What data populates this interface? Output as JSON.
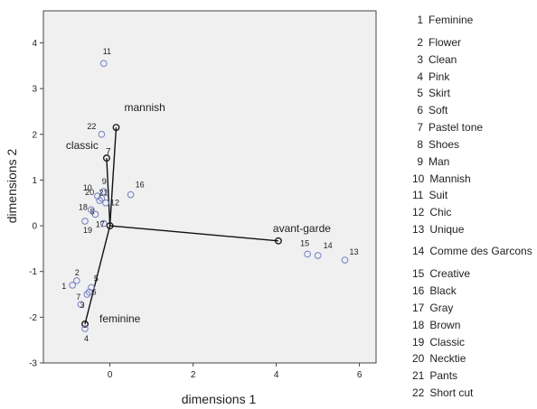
{
  "chart_data": {
    "type": "scatter",
    "xlabel": "dimensions 1",
    "ylabel": "dimensions 2",
    "xlim": [
      -1.6,
      6.4
    ],
    "ylim": [
      -3,
      4.7
    ],
    "x_ticks": [
      0,
      2,
      4,
      6
    ],
    "y_ticks": [
      -3,
      -2,
      -1,
      0,
      1,
      2,
      3,
      4
    ],
    "x_tick_labels": [
      "0",
      "2",
      "4",
      "6"
    ],
    "y_tick_labels": [
      "-3",
      "-2",
      "-1",
      "0",
      "1",
      "2",
      "3",
      "4"
    ],
    "grid": false,
    "colors": {
      "plot_background": "#f0f0f0",
      "point_stroke": "#7b86c8",
      "vector": "#111111",
      "text": "#222222"
    },
    "points": [
      {
        "id": "1",
        "x": -0.9,
        "y": -1.3
      },
      {
        "id": "2",
        "x": -0.8,
        "y": -1.2
      },
      {
        "id": "3",
        "x": -0.7,
        "y": -1.72
      },
      {
        "id": "4",
        "x": -0.6,
        "y": -2.25
      },
      {
        "id": "5",
        "x": -0.45,
        "y": -1.35
      },
      {
        "id": "6",
        "x": -0.5,
        "y": -1.45
      },
      {
        "id": "7",
        "x": -0.55,
        "y": -1.5
      },
      {
        "id": "8",
        "x": -0.35,
        "y": 0.25
      },
      {
        "id": "9",
        "x": -0.15,
        "y": 0.75
      },
      {
        "id": "10",
        "x": -0.3,
        "y": 0.65
      },
      {
        "id": "11",
        "x": -0.15,
        "y": 3.55
      },
      {
        "id": "12",
        "x": -0.1,
        "y": 0.5
      },
      {
        "id": "13",
        "x": 5.65,
        "y": -0.75
      },
      {
        "id": "14",
        "x": 5.0,
        "y": -0.65
      },
      {
        "id": "15",
        "x": 4.75,
        "y": -0.62
      },
      {
        "id": "16",
        "x": 0.5,
        "y": 0.68
      },
      {
        "id": "17",
        "x": -0.15,
        "y": 0.05
      },
      {
        "id": "18",
        "x": -0.45,
        "y": 0.35
      },
      {
        "id": "19",
        "x": -0.6,
        "y": 0.1
      },
      {
        "id": "20",
        "x": -0.25,
        "y": 0.55
      },
      {
        "id": "21",
        "x": -0.2,
        "y": 0.6
      },
      {
        "id": "22",
        "x": -0.2,
        "y": 2.0
      }
    ],
    "vectors": [
      {
        "name": "mannish",
        "x": 0.15,
        "y": 2.15
      },
      {
        "name": "classic",
        "x": -0.08,
        "y": 1.48
      },
      {
        "name": "avant-garde",
        "x": 4.05,
        "y": -0.33
      },
      {
        "name": "feminine",
        "x": -0.6,
        "y": -2.15
      }
    ],
    "annotation_text": "7"
  },
  "legend": [
    {
      "num": "1",
      "label": "Feminine"
    },
    {
      "num": "2",
      "label": "Flower"
    },
    {
      "num": "3",
      "label": "Clean"
    },
    {
      "num": "4",
      "label": "Pink"
    },
    {
      "num": "5",
      "label": "Skirt"
    },
    {
      "num": "6",
      "label": "Soft"
    },
    {
      "num": "7",
      "label": "Pastel tone"
    },
    {
      "num": "8",
      "label": "Shoes"
    },
    {
      "num": "9",
      "label": "Man"
    },
    {
      "num": "10",
      "label": "Mannish"
    },
    {
      "num": "11",
      "label": "Suit"
    },
    {
      "num": "12",
      "label": "Chic"
    },
    {
      "num": "13",
      "label": "Unique"
    },
    {
      "num": "14",
      "label": "Comme des Garcons"
    },
    {
      "num": "15",
      "label": "Creative"
    },
    {
      "num": "16",
      "label": "Black"
    },
    {
      "num": "17",
      "label": "Gray"
    },
    {
      "num": "18",
      "label": "Brown"
    },
    {
      "num": "19",
      "label": "Classic"
    },
    {
      "num": "20",
      "label": "Necktie"
    },
    {
      "num": "21",
      "label": "Pants"
    },
    {
      "num": "22",
      "label": "Short cut"
    }
  ]
}
